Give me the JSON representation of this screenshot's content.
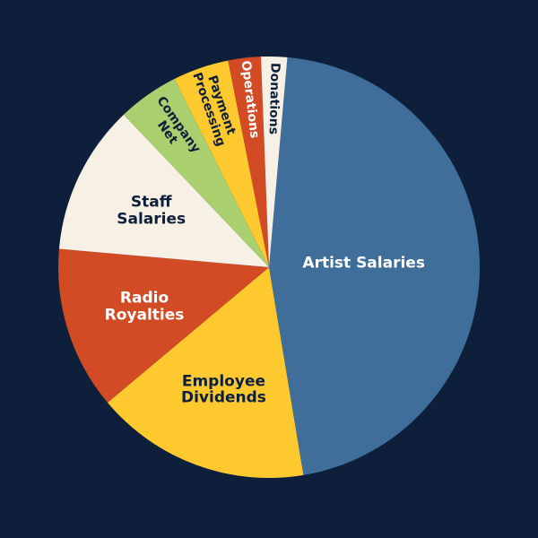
{
  "chart_data": {
    "type": "pie",
    "categories": [
      "Artist Salaries",
      "Employee Dividends",
      "Radio Royalties",
      "Staff Salaries",
      "Company Net",
      "Payment Processing",
      "Operations",
      "Donations"
    ],
    "values": [
      46,
      16.5,
      12.5,
      11.5,
      4.7,
      4.3,
      2.5,
      2.0
    ],
    "colors": [
      "#3e6e99",
      "#fec92f",
      "#d24b25",
      "#f7f1e5",
      "#a9cf6e",
      "#fec92f",
      "#d24b25",
      "#f7f1e5"
    ]
  }
}
